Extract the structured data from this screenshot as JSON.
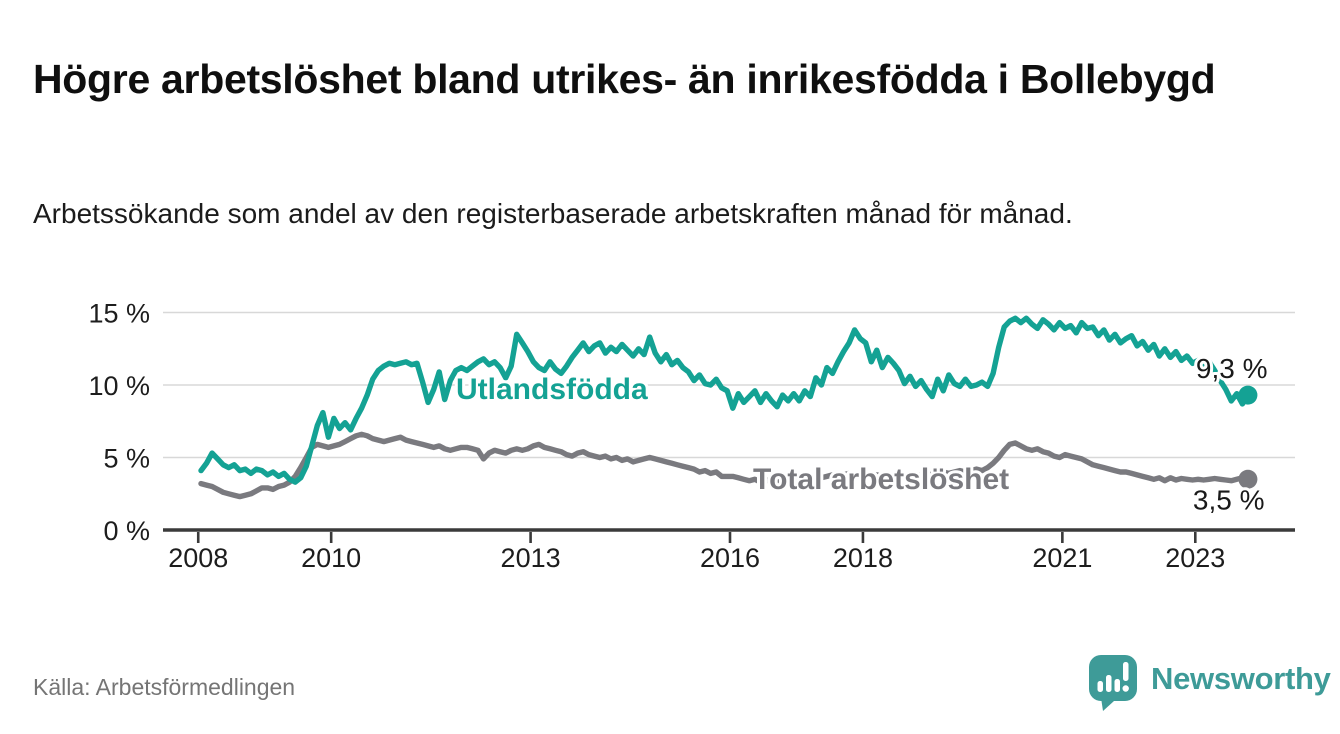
{
  "title": "Högre arbetslöshet bland utrikes- än inrikesfödda i Bollebygd",
  "subtitle": "Arbetssökande som andel av den registerbaserade arbetskraften månad för månad.",
  "source": "Källa: Arbetsförmedlingen",
  "logo": {
    "text": "Newsworthy",
    "icon": "bar-chart-speech-bubble-icon",
    "color": "#3e9b98"
  },
  "colors": {
    "foreign_line": "#14a294",
    "total_line": "#7a7a7f",
    "grid": "#d8d8d8",
    "axis": "#3a3a3a",
    "tick_label": "#1d1d1d",
    "end_label": "#1a1a1a",
    "halo": "#ffffff"
  },
  "chart_data": {
    "type": "line",
    "title": "Högre arbetslöshet bland utrikes- än inrikesfödda i Bollebygd",
    "subtitle": "Arbetssökande som andel av den registerbaserade arbetskraften månad för månad.",
    "unit": "%",
    "frequency": "monthly",
    "x_start": "2008-01",
    "x_end": "2023-10",
    "xlim": [
      2007.5,
      2024.5
    ],
    "ylim": [
      0,
      15.5
    ],
    "grid": true,
    "x_ticks": [
      2008,
      2010,
      2013,
      2016,
      2018,
      2021,
      2023
    ],
    "y_tick_values": [
      0,
      5,
      10,
      15
    ],
    "y_tick_labels": [
      "0 %",
      "5 %",
      "10 %",
      "15 %"
    ],
    "series": [
      {
        "name": "Total arbetslöshet",
        "color": "#7a7a7f",
        "end_label": "3,5 %",
        "end_value": 3.5,
        "values": [
          3.2,
          3.1,
          3.0,
          2.8,
          2.6,
          2.5,
          2.4,
          2.3,
          2.4,
          2.5,
          2.7,
          2.9,
          2.9,
          2.8,
          3.0,
          3.1,
          3.3,
          3.7,
          4.3,
          5.0,
          5.7,
          5.9,
          5.8,
          5.7,
          5.8,
          5.9,
          6.1,
          6.3,
          6.5,
          6.6,
          6.5,
          6.3,
          6.2,
          6.1,
          6.2,
          6.3,
          6.4,
          6.2,
          6.1,
          6.0,
          5.9,
          5.8,
          5.7,
          5.8,
          5.6,
          5.5,
          5.6,
          5.7,
          5.7,
          5.6,
          5.5,
          4.9,
          5.3,
          5.5,
          5.4,
          5.3,
          5.5,
          5.6,
          5.5,
          5.6,
          5.8,
          5.9,
          5.7,
          5.6,
          5.5,
          5.4,
          5.2,
          5.1,
          5.3,
          5.4,
          5.2,
          5.1,
          5.0,
          5.1,
          4.9,
          5.0,
          4.8,
          4.9,
          4.7,
          4.8,
          4.9,
          5.0,
          4.9,
          4.8,
          4.7,
          4.6,
          4.5,
          4.4,
          4.3,
          4.2,
          4.0,
          4.1,
          3.9,
          4.0,
          3.7,
          3.7,
          3.7,
          3.6,
          3.5,
          3.4,
          3.5,
          3.3,
          3.4,
          3.5,
          3.4,
          3.5,
          3.6,
          3.5,
          3.6,
          3.5,
          3.6,
          3.7,
          3.6,
          3.7,
          3.8,
          3.7,
          3.8,
          3.9,
          3.8,
          3.7,
          3.8,
          3.7,
          3.8,
          3.7,
          3.6,
          3.7,
          3.6,
          3.7,
          3.8,
          3.7,
          3.8,
          3.9,
          3.8,
          3.9,
          4.0,
          3.9,
          4.0,
          4.1,
          4.0,
          4.1,
          4.2,
          4.1,
          4.3,
          4.6,
          5.0,
          5.5,
          5.9,
          6.0,
          5.8,
          5.6,
          5.5,
          5.6,
          5.4,
          5.3,
          5.1,
          5.0,
          5.2,
          5.1,
          5.0,
          4.9,
          4.7,
          4.5,
          4.4,
          4.3,
          4.2,
          4.1,
          4.0,
          4.0,
          3.9,
          3.8,
          3.7,
          3.6,
          3.5,
          3.6,
          3.4,
          3.6,
          3.45,
          3.55,
          3.5,
          3.45,
          3.5,
          3.45,
          3.5,
          3.55,
          3.5,
          3.45,
          3.4,
          3.5,
          3.6,
          3.5
        ]
      },
      {
        "name": "Utlandsfödda",
        "color": "#14a294",
        "end_label": "9,3 %",
        "end_value": 9.3,
        "values": [
          4.1,
          4.6,
          5.3,
          4.9,
          4.5,
          4.3,
          4.5,
          4.1,
          4.2,
          3.9,
          4.2,
          4.1,
          3.8,
          4.0,
          3.7,
          3.9,
          3.5,
          3.3,
          3.6,
          4.4,
          5.8,
          7.2,
          8.1,
          6.4,
          7.7,
          7.0,
          7.4,
          6.9,
          7.7,
          8.4,
          9.3,
          10.4,
          11.0,
          11.3,
          11.5,
          11.4,
          11.5,
          11.6,
          11.4,
          11.5,
          10.2,
          8.8,
          9.7,
          10.9,
          9.0,
          10.3,
          11.0,
          11.2,
          11.0,
          11.3,
          11.6,
          11.8,
          11.4,
          11.6,
          11.2,
          10.5,
          11.3,
          13.5,
          12.9,
          12.3,
          11.6,
          11.2,
          11.0,
          11.6,
          11.1,
          10.8,
          11.3,
          11.9,
          12.4,
          12.9,
          12.3,
          12.7,
          12.9,
          12.2,
          12.6,
          12.3,
          12.8,
          12.4,
          12.0,
          12.5,
          12.1,
          13.3,
          12.2,
          11.6,
          12.1,
          11.4,
          11.7,
          11.2,
          10.9,
          10.3,
          10.7,
          10.1,
          10.0,
          10.4,
          9.8,
          9.6,
          8.4,
          9.4,
          8.8,
          9.2,
          9.6,
          8.8,
          9.4,
          8.9,
          8.5,
          9.3,
          8.9,
          9.4,
          8.9,
          9.6,
          9.2,
          10.5,
          10.0,
          11.2,
          10.8,
          11.6,
          12.3,
          12.9,
          13.8,
          13.2,
          12.9,
          11.6,
          12.4,
          11.2,
          11.9,
          11.5,
          11.0,
          10.1,
          10.6,
          9.9,
          10.3,
          9.7,
          9.2,
          10.4,
          9.6,
          10.7,
          10.1,
          9.9,
          10.4,
          9.9,
          10.0,
          10.2,
          9.9,
          10.8,
          12.6,
          14.0,
          14.4,
          14.6,
          14.3,
          14.6,
          14.2,
          13.9,
          14.5,
          14.2,
          13.8,
          14.3,
          13.9,
          14.1,
          13.6,
          14.3,
          13.9,
          14.0,
          13.4,
          13.8,
          13.1,
          13.5,
          12.9,
          13.2,
          13.4,
          12.7,
          13.0,
          12.4,
          12.8,
          12.0,
          12.5,
          11.9,
          12.3,
          11.7,
          12.0,
          11.5,
          11.7,
          11.3,
          11.6,
          11.0,
          10.3,
          9.7,
          8.9,
          9.4,
          8.7,
          9.3
        ]
      }
    ],
    "series_label_annotations": [
      "Utlandsfödda",
      "Total arbetslöshet"
    ],
    "legend_position": "inline-labels"
  }
}
